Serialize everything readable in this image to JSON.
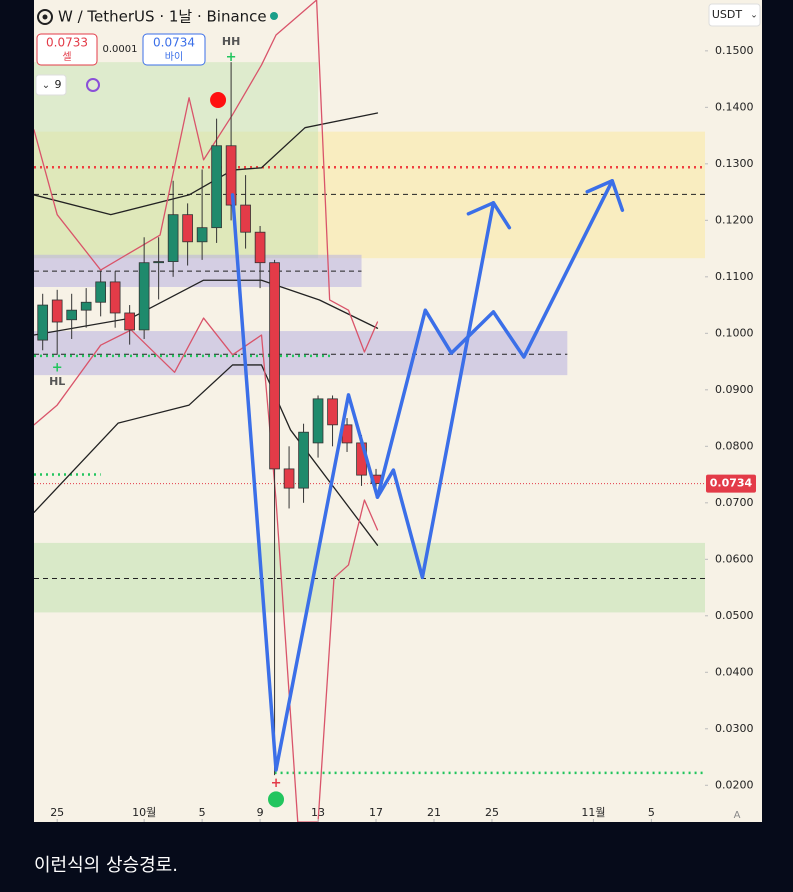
{
  "chart_data": {
    "type": "candlestick",
    "title": "W / TetherUS · 1날 · Binance",
    "toolbar": {
      "sell_price": "0.0733",
      "sell_label": "셀",
      "spread": "0.0001",
      "buy_price": "0.0734",
      "buy_label": "바이",
      "indicator": "9",
      "currency": "USDT",
      "auto": "A"
    },
    "caption": "이런식의 상승경로.",
    "x": [
      -1,
      0,
      1,
      2,
      3,
      4,
      5,
      6,
      7,
      8,
      9,
      10,
      11,
      12,
      13,
      14,
      15,
      16,
      17,
      18,
      19,
      20,
      21,
      22
    ],
    "open": [
      0.0988,
      0.1059,
      0.1024,
      0.1041,
      0.1055,
      0.1091,
      0.1036,
      0.1006,
      0.1125,
      0.1127,
      0.121,
      0.1162,
      0.1187,
      0.1332,
      0.1227,
      0.1179,
      0.1125,
      0.076,
      0.0726,
      0.0806,
      0.0884,
      0.0838,
      0.0806,
      0.0749
    ],
    "high": [
      0.107,
      0.1077,
      0.107,
      0.108,
      0.111,
      0.111,
      0.105,
      0.117,
      0.117,
      0.127,
      0.123,
      0.129,
      0.138,
      0.148,
      0.128,
      0.119,
      0.113,
      0.08,
      0.084,
      0.089,
      0.089,
      0.085,
      0.082,
      0.076
    ],
    "low": [
      0.097,
      0.0962,
      0.099,
      0.101,
      0.103,
      0.101,
      0.098,
      0.099,
      0.106,
      0.11,
      0.112,
      0.113,
      0.116,
      0.12,
      0.115,
      0.108,
      0.0218,
      0.069,
      0.07,
      0.078,
      0.08,
      0.079,
      0.073,
      0.071
    ],
    "close": [
      0.105,
      0.102,
      0.1041,
      0.1055,
      0.1091,
      0.1036,
      0.1006,
      0.1125,
      0.1127,
      0.121,
      0.1162,
      0.1187,
      0.1332,
      0.1227,
      0.1179,
      0.1125,
      0.076,
      0.0726,
      0.0825,
      0.0884,
      0.0838,
      0.0806,
      0.0749,
      0.0734
    ],
    "up_color": "#1f8a6c",
    "down_color": "#e33b48",
    "last_price": {
      "value": 0.0734,
      "label": "0.0734",
      "color": "#e33b48"
    },
    "xlim": [
      -1.6,
      44.7
    ],
    "ylim": [
      0.0135,
      0.159
    ],
    "xticks": [
      {
        "value": 0,
        "label": "25"
      },
      {
        "value": 6,
        "label": "10월"
      },
      {
        "value": 10,
        "label": "5"
      },
      {
        "value": 14,
        "label": "9"
      },
      {
        "value": 18,
        "label": "13"
      },
      {
        "value": 22,
        "label": "17"
      },
      {
        "value": 26,
        "label": "21"
      },
      {
        "value": 30,
        "label": "25"
      },
      {
        "value": 37,
        "label": "11월"
      },
      {
        "value": 41,
        "label": "5"
      }
    ],
    "yticks": [
      {
        "value": 0.15,
        "label": "0.1500"
      },
      {
        "value": 0.14,
        "label": "0.1400"
      },
      {
        "value": 0.13,
        "label": "0.1300"
      },
      {
        "value": 0.12,
        "label": "0.1200"
      },
      {
        "value": 0.11,
        "label": "0.1100"
      },
      {
        "value": 0.1,
        "label": "0.1000"
      },
      {
        "value": 0.09,
        "label": "0.0900"
      },
      {
        "value": 0.08,
        "label": "0.0800"
      },
      {
        "value": 0.07,
        "label": "0.0700"
      },
      {
        "value": 0.06,
        "label": "0.0600"
      },
      {
        "value": 0.05,
        "label": "0.0500"
      },
      {
        "value": 0.04,
        "label": "0.0400"
      },
      {
        "value": 0.03,
        "label": "0.0300"
      },
      {
        "value": 0.02,
        "label": "0.0200"
      }
    ],
    "zones": [
      {
        "color": "#fbe9a0",
        "opacity": 0.55,
        "x": [
          -1.6,
          44.7
        ],
        "price": [
          0.1133,
          0.1357
        ]
      },
      {
        "color": "#c5e3b4",
        "opacity": 0.5,
        "x": [
          -1.6,
          18
        ],
        "price": [
          0.1133,
          0.148
        ]
      },
      {
        "color": "#b8b0e0",
        "opacity": 0.55,
        "x": [
          -1.6,
          21
        ],
        "price": [
          0.1082,
          0.1139
        ]
      },
      {
        "color": "#b8b0e0",
        "opacity": 0.55,
        "x": [
          -1.6,
          35.2
        ],
        "price": [
          0.0926,
          0.1004
        ]
      },
      {
        "color": "#c5e3b4",
        "opacity": 0.6,
        "x": [
          -1.6,
          44.7
        ],
        "price": [
          0.0506,
          0.0629
        ]
      }
    ],
    "levels": [
      {
        "price": 0.1294,
        "x": [
          -1.6,
          44.7
        ],
        "color": "#f04040",
        "dash": "dot"
      },
      {
        "price": 0.1246,
        "x": [
          -1.6,
          44.7
        ],
        "color": "#222222",
        "dash": "dash"
      },
      {
        "price": 0.111,
        "x": [
          -1.6,
          21
        ],
        "color": "#222222",
        "dash": "dash"
      },
      {
        "price": 0.0963,
        "x": [
          -1.6,
          35.2
        ],
        "color": "#222222",
        "dash": "dash"
      },
      {
        "price": 0.096,
        "x": [
          -1.6,
          19
        ],
        "color": "#22c55e",
        "dash": "dot"
      },
      {
        "price": 0.075,
        "x": [
          -1.6,
          3
        ],
        "color": "#22c55e",
        "dash": "dot"
      },
      {
        "price": 0.0566,
        "x": [
          -1.6,
          44.7
        ],
        "color": "#222222",
        "dash": "dash"
      },
      {
        "price": 0.0222,
        "x": [
          15,
          44.7
        ],
        "color": "#22c55e",
        "dash": "dot"
      },
      {
        "price": 0.0734,
        "x": [
          -1.6,
          44.7
        ],
        "color": "#e33b48",
        "dash": "fine"
      }
    ],
    "lines": [
      {
        "color": "#222222",
        "x": [
          -1.6,
          3.7,
          9.1,
          12.1,
          14.1,
          17.1,
          22.1
        ],
        "values": [
          0.1245,
          0.121,
          0.1245,
          0.1289,
          0.1293,
          0.1364,
          0.139
        ]
      },
      {
        "color": "#222222",
        "x": [
          -1.6,
          5.1,
          10.1,
          14.1,
          18.1,
          22.1
        ],
        "values": [
          0.0997,
          0.1027,
          0.1094,
          0.1094,
          0.1059,
          0.1009
        ]
      },
      {
        "color": "#222222",
        "x": [
          -1.6,
          4.2,
          9.1,
          12.1,
          14.1,
          16.1,
          22.1
        ],
        "values": [
          0.0683,
          0.0841,
          0.0873,
          0.0944,
          0.0944,
          0.0829,
          0.0625
        ]
      },
      {
        "color": "#d9546a",
        "x": [
          -1.6,
          0,
          3,
          7.1,
          9.1,
          10.1,
          12.1,
          14.1,
          15.1,
          17.9,
          18.8,
          20.1,
          21.2,
          22.1
        ],
        "values": [
          0.136,
          0.121,
          0.1112,
          0.1174,
          0.1417,
          0.1307,
          0.1387,
          0.1475,
          0.1528,
          0.159,
          0.1059,
          0.1041,
          0.0967,
          0.102
        ]
      },
      {
        "color": "#d9546a",
        "x": [
          -1.6,
          0,
          3,
          5.1,
          8.1,
          10.1,
          12.1,
          14.1,
          15.1,
          16.6,
          18,
          19.1,
          20.1,
          21.2,
          22.1
        ],
        "values": [
          0.0838,
          0.0873,
          0.0979,
          0.1006,
          0.0931,
          0.1027,
          0.0962,
          0.0997,
          0.0705,
          0.0135,
          0.0135,
          0.0567,
          0.059,
          0.0705,
          0.0652
        ]
      }
    ],
    "projections": [
      {
        "color": "#3b6fe8",
        "x": [
          12.1,
          15.1,
          20.1,
          22.1,
          23.2,
          25.2,
          30.1,
          31.2
        ],
        "values": [
          0.1245,
          0.0227,
          0.0891,
          0.071,
          0.0758,
          0.0568,
          0.1231,
          0.1187
        ]
      },
      {
        "color": "#3b6fe8",
        "x": [
          22.1,
          25.4,
          27.2,
          30.1,
          32.2,
          38.3,
          39
        ],
        "values": [
          0.071,
          0.1041,
          0.0965,
          0.1038,
          0.0958,
          0.127,
          0.1218
        ]
      }
    ],
    "dots": [
      {
        "x": 11.1,
        "price": 0.1413,
        "color": "#ff1010"
      },
      {
        "x": 15.1,
        "price": 0.0175,
        "color": "#22c55e"
      }
    ],
    "annotations": [
      {
        "label": "HH",
        "x": 12,
        "price": 0.1516,
        "color": "#555555"
      },
      {
        "label": "+",
        "x": 12,
        "price": 0.1488,
        "color": "#22c55e"
      },
      {
        "label": "HL",
        "x": 0,
        "price": 0.0914,
        "color": "#555555"
      },
      {
        "label": "+",
        "x": 0,
        "price": 0.0939,
        "color": "#22c55e"
      },
      {
        "label": "+",
        "x": 15.1,
        "price": 0.0203,
        "color": "#e33b48"
      }
    ]
  }
}
